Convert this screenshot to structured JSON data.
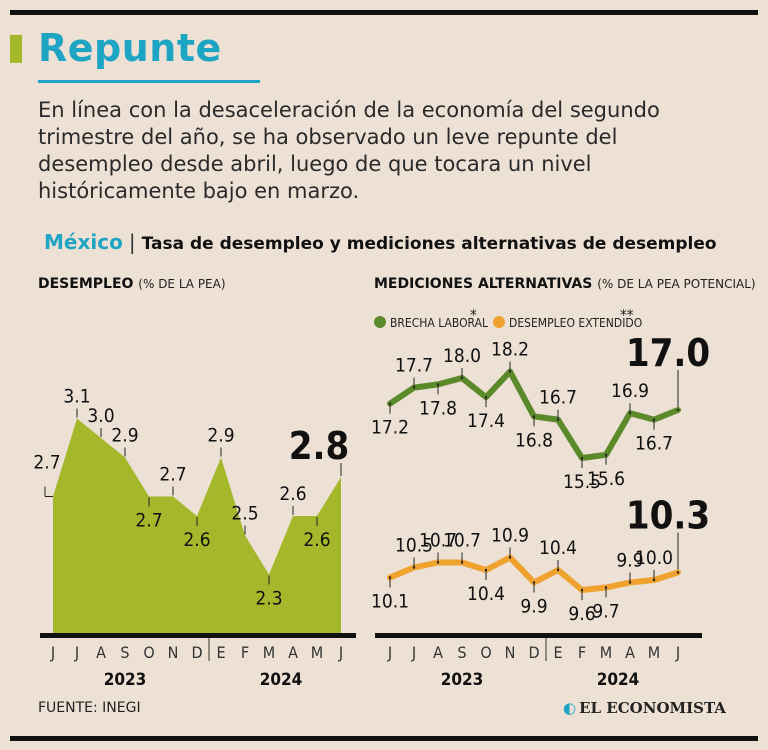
{
  "header": {
    "title": "Repunte",
    "intro": "En línea con la desaceleración de la economía del segundo trimestre del año, se ha observado un leve repunte del desempleo desde abril, luego de que tocara un nivel históricamente bajo en marzo.",
    "country": "México",
    "separator": "|",
    "chart_title": "Tasa de desempleo y mediciones alternativas de desempleo"
  },
  "colors": {
    "accent": "#1fa5c4",
    "area": "#a5b82c",
    "brecha": "#5b8a2b",
    "extendido": "#f0a22e"
  },
  "footer": {
    "source": "FUENTE: INEGI",
    "brand": "EL ECONOMISTA",
    "brand_icon": "el-economista-logo-icon"
  },
  "chart_data": [
    {
      "type": "area",
      "title": "DESEMPLEO",
      "unit": "(% DE LA PEA)",
      "x": [
        "J",
        "J",
        "A",
        "S",
        "O",
        "N",
        "D",
        "E",
        "F",
        "M",
        "A",
        "M",
        "J"
      ],
      "x_groups": [
        {
          "label": "2023",
          "months": 7
        },
        {
          "label": "2024",
          "months": 6
        }
      ],
      "series": [
        {
          "values": [
            2.7,
            3.1,
            3.0,
            2.9,
            2.7,
            2.7,
            2.6,
            2.9,
            2.5,
            2.3,
            2.6,
            2.6,
            2.8
          ]
        }
      ],
      "highlight_last": true
    },
    {
      "type": "line",
      "title": "MEDICIONES ALTERNATIVAS",
      "unit": "(% DE LA PEA POTENCIAL)",
      "x": [
        "J",
        "J",
        "A",
        "S",
        "O",
        "N",
        "D",
        "E",
        "F",
        "M",
        "A",
        "M",
        "J"
      ],
      "x_groups": [
        {
          "label": "2023",
          "months": 7
        },
        {
          "label": "2024",
          "months": 6
        }
      ],
      "series": [
        {
          "name": "BRECHA LABORAL",
          "mark": "*",
          "values": [
            17.2,
            17.7,
            17.8,
            18.0,
            17.4,
            18.2,
            16.8,
            16.7,
            15.5,
            15.6,
            16.9,
            16.7,
            17.0
          ]
        },
        {
          "name": "DESEMPLEO EXTENDIDO",
          "mark": "**",
          "values": [
            10.1,
            10.5,
            10.7,
            10.7,
            10.4,
            10.9,
            9.9,
            10.4,
            9.6,
            9.7,
            9.9,
            10.0,
            10.3
          ]
        }
      ],
      "highlight_last": true
    }
  ]
}
